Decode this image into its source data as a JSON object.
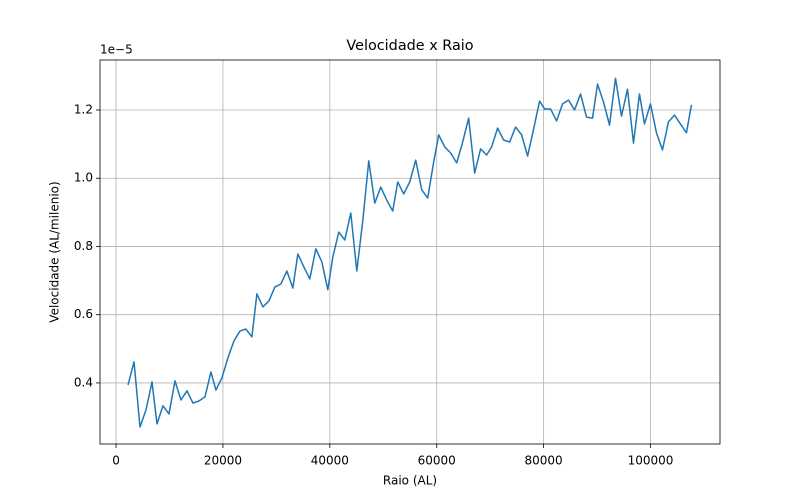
{
  "chart_data": {
    "type": "line",
    "title": "Velocidade x Raio",
    "x_label": "Raio (AL)",
    "y_label": "Velocidade (AL/milenio)",
    "y_offset_label": "1e−5",
    "color": "#1f77b4",
    "grid": true,
    "xlim": [
      -3000,
      113000
    ],
    "ylim": [
      0.221,
      1.3465
    ],
    "xticks": [
      0,
      20000,
      40000,
      60000,
      80000,
      100000
    ],
    "yticks": [
      0.4,
      0.6,
      0.8,
      {
        "value": 1.0,
        "label": "1.0"
      },
      1.2
    ],
    "x": [
      2243,
      3364,
      4486,
      5607,
      6729,
      7663,
      8785,
      9906,
      11028,
      12149,
      13270,
      14391,
      15513,
      16634,
      17756,
      18690,
      19811,
      20933,
      22054,
      23176,
      24297,
      25418,
      26353,
      27474,
      28596,
      29717,
      30839,
      31960,
      33081,
      34016,
      35137,
      36259,
      37380,
      38501,
      39623,
      40557,
      41679,
      42800,
      43922,
      45043,
      46164,
      47286,
      48407,
      49529,
      50650,
      51771,
      52706,
      53827,
      54949,
      56070,
      57191,
      58313,
      59434,
      60369,
      61490,
      62612,
      63733,
      64854,
      65976,
      67097,
      68219,
      69340,
      70274,
      71396,
      72517,
      73639,
      74760,
      75881,
      77003,
      78124,
      79246,
      80180,
      81302,
      82423,
      83544,
      84666,
      85787,
      86909,
      88030,
      89151,
      90086,
      91207,
      92329,
      93450,
      94571,
      95693,
      96814,
      97936,
      98870,
      99991,
      101113,
      102234,
      103356,
      104477,
      105598,
      106720,
      107654
    ],
    "values": [
      0.394,
      0.462,
      0.271,
      0.321,
      0.403,
      0.28,
      0.333,
      0.309,
      0.406,
      0.35,
      0.377,
      0.341,
      0.347,
      0.359,
      0.432,
      0.379,
      0.415,
      0.473,
      0.523,
      0.552,
      0.558,
      0.535,
      0.661,
      0.623,
      0.64,
      0.681,
      0.69,
      0.728,
      0.678,
      0.778,
      0.74,
      0.705,
      0.793,
      0.755,
      0.673,
      0.769,
      0.842,
      0.819,
      0.898,
      0.728,
      0.875,
      1.051,
      0.927,
      0.974,
      0.936,
      0.904,
      0.989,
      0.954,
      0.989,
      1.053,
      0.966,
      0.942,
      1.048,
      1.127,
      1.092,
      1.074,
      1.045,
      1.106,
      1.176,
      1.015,
      1.086,
      1.068,
      1.092,
      1.147,
      1.112,
      1.106,
      1.15,
      1.127,
      1.065,
      1.144,
      1.226,
      1.203,
      1.203,
      1.168,
      1.218,
      1.229,
      1.2,
      1.247,
      1.179,
      1.176,
      1.276,
      1.223,
      1.156,
      1.293,
      1.182,
      1.261,
      1.103,
      1.247,
      1.159,
      1.218,
      1.133,
      1.083,
      1.165,
      1.185,
      1.159,
      1.133,
      1.215
    ]
  }
}
